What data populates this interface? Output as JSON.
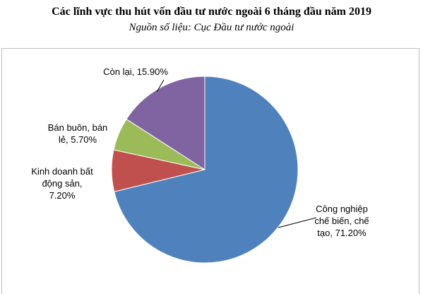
{
  "chart_data": {
    "type": "pie",
    "title": "Các lĩnh vực thu hút vốn đầu tư nước ngoài 6 tháng đầu năm 2019",
    "subtitle": "Nguồn số liệu: Cục Đầu tư nước ngoài",
    "slices": [
      {
        "label_lines": [
          "Công nghiệp",
          "chế biến, chế",
          "tạo, 71.20%"
        ],
        "value": 71.2,
        "color": "#4f81bd"
      },
      {
        "label_lines": [
          "Kinh doanh bất",
          "động sản,",
          "7.20%"
        ],
        "value": 7.2,
        "color": "#c0504d"
      },
      {
        "label_lines": [
          "Bán buôn, bán",
          "lẻ, 5.70%"
        ],
        "value": 5.7,
        "color": "#9bbb59"
      },
      {
        "label_lines": [
          "Còn lại, 15.90%"
        ],
        "value": 15.9,
        "color": "#8064a2"
      }
    ],
    "start_angle_deg": 0,
    "direction": "clockwise",
    "legend": "none"
  }
}
